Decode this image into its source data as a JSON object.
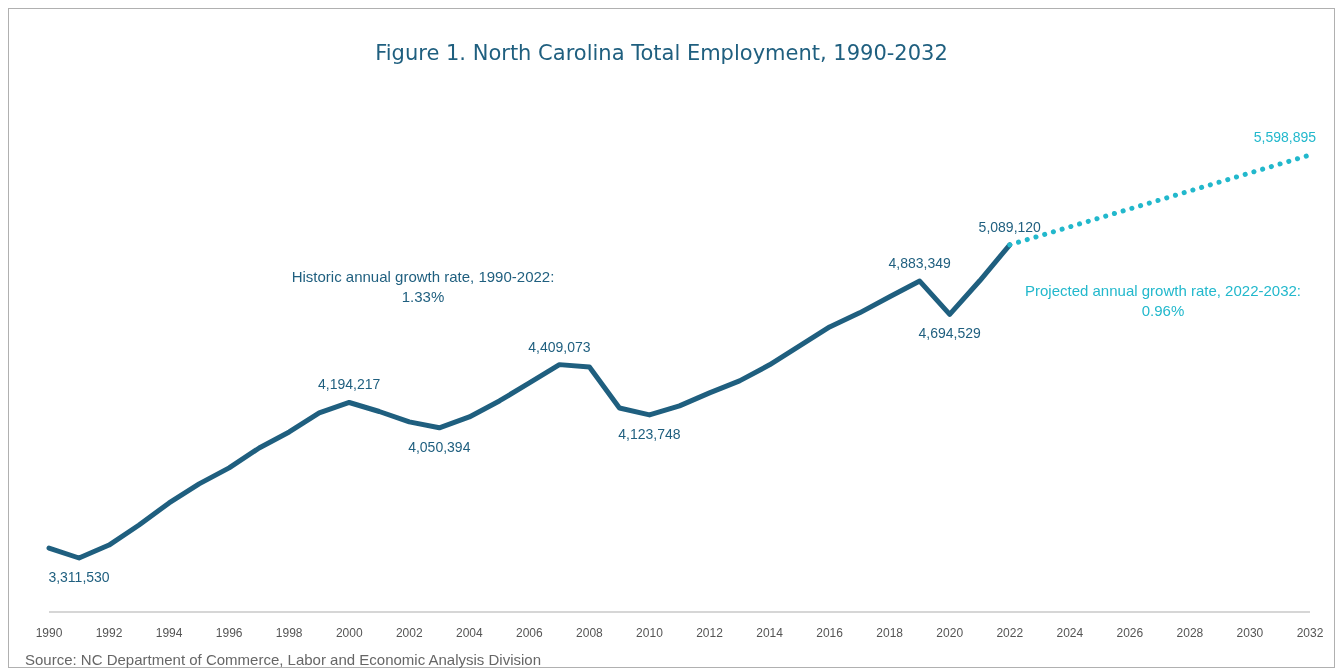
{
  "chart_data": {
    "type": "line",
    "title": "Figure 1. North Carolina Total Employment, 1990-2032",
    "x": [
      1990,
      1991,
      1992,
      1993,
      1994,
      1995,
      1996,
      1997,
      1998,
      1999,
      2000,
      2001,
      2002,
      2003,
      2004,
      2005,
      2006,
      2007,
      2008,
      2009,
      2010,
      2011,
      2012,
      2013,
      2014,
      2015,
      2016,
      2017,
      2018,
      2019,
      2020,
      2021,
      2022
    ],
    "xlim": [
      1990,
      2032
    ],
    "xticks": [
      1990,
      1992,
      1994,
      1996,
      1998,
      2000,
      2002,
      2004,
      2006,
      2008,
      2010,
      2012,
      2014,
      2016,
      2018,
      2020,
      2022,
      2024,
      2026,
      2028,
      2030,
      2032
    ],
    "series": [
      {
        "color": "#1f5f7f",
        "line_style": "solid",
        "values": [
          3368000,
          3311530,
          3385000,
          3499000,
          3624000,
          3732000,
          3823000,
          3936000,
          4027000,
          4135000,
          4194217,
          4143000,
          4084000,
          4050394,
          4112000,
          4203000,
          4305000,
          4409073,
          4396000,
          4163000,
          4123748,
          4175000,
          4249000,
          4317000,
          4408000,
          4515000,
          4623000,
          4703000,
          4794000,
          4883349,
          4694529,
          4885000,
          5089120
        ],
        "value_labels": [
          null,
          "3,311,530",
          null,
          null,
          null,
          null,
          null,
          null,
          null,
          null,
          "4,194,217",
          null,
          null,
          "4,050,394",
          null,
          null,
          null,
          "4,409,073",
          null,
          null,
          "4,123,748",
          null,
          null,
          null,
          null,
          null,
          null,
          null,
          null,
          "4,883,349",
          "4,694,529",
          null,
          "5,089,120"
        ]
      },
      {
        "color": "#22b8cc",
        "line_style": "dotted",
        "x": [
          2022,
          2032
        ],
        "values": [
          5089120,
          5598895
        ],
        "value_labels": [
          null,
          "5,598,895"
        ]
      }
    ],
    "annotations": [
      "Historic annual growth rate, 1990-2022:\n1.33%",
      "Projected annual growth rate, 2022-2032:\n0.96%",
      "Source: NC Department of Commerce, Labor and Economic Analysis Division"
    ],
    "grid": false,
    "marker": "none"
  }
}
